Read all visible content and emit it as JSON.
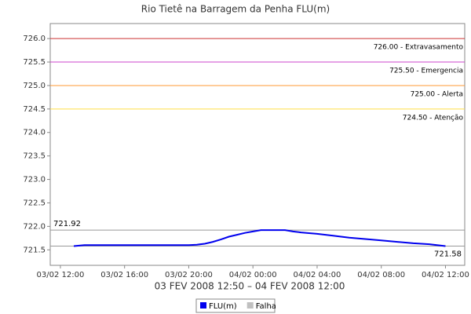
{
  "chart_data": {
    "type": "line",
    "title": "Rio Tietê na Barragem da Penha FLU(m)",
    "x_label": "03 FEV 2008 12:50 – 04 FEV 2008 12:00",
    "x": [
      "2008-02-03T12:50",
      "2008-02-03T13:30",
      "2008-02-03T14:00",
      "2008-02-03T15:00",
      "2008-02-03T16:00",
      "2008-02-03T17:00",
      "2008-02-03T18:00",
      "2008-02-03T19:00",
      "2008-02-03T20:00",
      "2008-02-03T20:30",
      "2008-02-03T21:00",
      "2008-02-03T21:30",
      "2008-02-03T22:00",
      "2008-02-03T22:30",
      "2008-02-03T23:00",
      "2008-02-03T23:30",
      "2008-02-04T00:00",
      "2008-02-04T00:30",
      "2008-02-04T01:00",
      "2008-02-04T02:00",
      "2008-02-04T02:30",
      "2008-02-04T03:00",
      "2008-02-04T04:00",
      "2008-02-04T05:00",
      "2008-02-04T06:00",
      "2008-02-04T07:00",
      "2008-02-04T08:00",
      "2008-02-04T09:00",
      "2008-02-04T10:00",
      "2008-02-04T11:00",
      "2008-02-04T12:00"
    ],
    "series": [
      {
        "name": "FLU(m)",
        "color": "#0000ee",
        "values": [
          721.58,
          721.6,
          721.6,
          721.6,
          721.6,
          721.6,
          721.6,
          721.6,
          721.6,
          721.61,
          721.63,
          721.67,
          721.72,
          721.78,
          721.82,
          721.86,
          721.89,
          721.92,
          721.92,
          721.92,
          721.89,
          721.87,
          721.84,
          721.8,
          721.76,
          721.73,
          721.7,
          721.67,
          721.64,
          721.62,
          721.58
        ]
      }
    ],
    "other_legend_entries": [
      {
        "name": "Falha",
        "color": "#c0c0c0"
      }
    ],
    "xlim": [
      "2008-02-03T11:22",
      "2008-02-04T13:12"
    ],
    "xticks": [
      {
        "value": "2008-02-03T12:00",
        "label": "03/02 12:00"
      },
      {
        "value": "2008-02-03T16:00",
        "label": "03/02 16:00"
      },
      {
        "value": "2008-02-03T20:00",
        "label": "03/02 20:00"
      },
      {
        "value": "2008-02-04T00:00",
        "label": "04/02 00:00"
      },
      {
        "value": "2008-02-04T04:00",
        "label": "04/02 04:00"
      },
      {
        "value": "2008-02-04T08:00",
        "label": "04/02 08:00"
      },
      {
        "value": "2008-02-04T12:00",
        "label": "04/02 12:00"
      }
    ],
    "ylim": [
      721.17,
      726.32
    ],
    "yticks": [
      721.5,
      {
        "value": 722,
        "label": "722.0"
      },
      722.5,
      {
        "value": 723,
        "label": "723.0"
      },
      723.5,
      {
        "value": 724,
        "label": "724.0"
      },
      724.5,
      {
        "value": 725,
        "label": "725.0"
      },
      725.5,
      {
        "value": 726,
        "label": "726.0"
      }
    ],
    "thresholds": [
      {
        "value": 726,
        "label": "726.00 - Extravasamento",
        "color": "#cc3333"
      },
      {
        "value": 725.5,
        "label": "725.50 - Emergencia",
        "color": "#cc44cc"
      },
      {
        "value": 725,
        "label": "725.00 - Alerta",
        "color": "#ff9933"
      },
      {
        "value": 724.5,
        "label": "724.50 - Atenção",
        "color": "#ffdd44"
      }
    ],
    "markers": [
      {
        "value": 721.92,
        "label": "721.92",
        "side": "left"
      },
      {
        "value": 721.58,
        "label": "721.58",
        "side": "right"
      }
    ]
  }
}
